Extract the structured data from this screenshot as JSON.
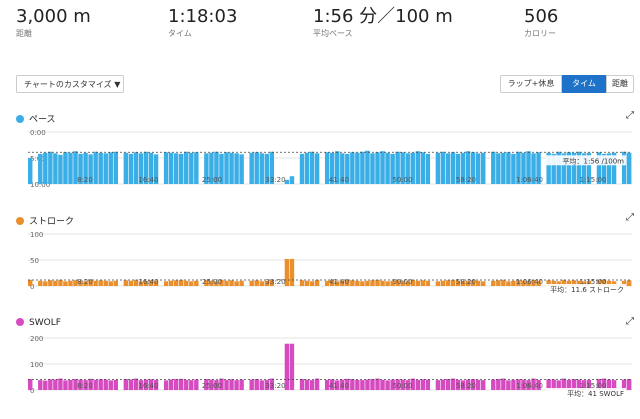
{
  "stats": [
    {
      "value": "3,000 m",
      "label": "距離"
    },
    {
      "value": "1:18:03",
      "label": "タイム"
    },
    {
      "value": "1:56 分／100 m",
      "label": "平均ペース"
    },
    {
      "value": "506",
      "label": "カロリー"
    }
  ],
  "toolbar": {
    "customize_label": "チャートのカスタマイズ ▼",
    "segments": [
      "ラップ+休息",
      "タイム",
      "距離"
    ],
    "active_segment": "タイム"
  },
  "colors": {
    "pace": "#3aaee6",
    "stroke": "#ea8f2b",
    "swolf": "#d74bc0",
    "accent": "#1e73c8"
  },
  "xticks": [
    "8:20",
    "16:40",
    "25:00",
    "33:20",
    "41:40",
    "50:00",
    "58:20",
    "1:06:40",
    "1:15:00"
  ],
  "chart_data": [
    {
      "type": "bar",
      "title": "ペース",
      "y_ticks": [
        "0:00",
        "5:00",
        "10:00"
      ],
      "inverted": true,
      "average_label": "平均：1:56 /100m",
      "average": 0.39,
      "values": [
        0.5,
        0,
        0.42,
        0.4,
        0.38,
        0.41,
        0.44,
        0.39,
        0.4,
        0.37,
        0.42,
        0.4,
        0.43,
        0.38,
        0.4,
        0.41,
        0.39,
        0.38,
        0,
        0.4,
        0.42,
        0.39,
        0.41,
        0.38,
        0.4,
        0.43,
        0,
        0.39,
        0.4,
        0.41,
        0.42,
        0.38,
        0.4,
        0.39,
        0,
        0.41,
        0.4,
        0.38,
        0.42,
        0.39,
        0.4,
        0.41,
        0.43,
        0,
        0.4,
        0.39,
        0.41,
        0.42,
        0.38,
        0,
        0,
        0.92,
        0.85,
        0,
        0.42,
        0.4,
        0.38,
        0.41,
        0,
        0.39,
        0.4,
        0.37,
        0.41,
        0.42,
        0.39,
        0.4,
        0.38,
        0.36,
        0.41,
        0.39,
        0.37,
        0.4,
        0.42,
        0.38,
        0.39,
        0.41,
        0.4,
        0.37,
        0.39,
        0.42,
        0,
        0.4,
        0.38,
        0.41,
        0.39,
        0.42,
        0.4,
        0.37,
        0.39,
        0.41,
        0.4,
        0,
        0.38,
        0.41,
        0.4,
        0.39,
        0.42,
        0.38,
        0.4,
        0.37,
        0.41,
        0.39,
        0,
        0.4,
        0.42,
        0.38,
        0.41,
        0.39,
        0.4,
        0.38,
        0.41,
        0.4,
        0,
        0.39,
        0.42,
        0.41,
        0.4,
        0,
        0.38,
        0.4
      ]
    },
    {
      "type": "bar",
      "title": "ストローク",
      "y_ticks": [
        "100",
        "50",
        "0"
      ],
      "ymax": 100,
      "average_label": "平均：11.6 ストローク",
      "average": 11.6,
      "values": [
        12,
        0,
        10,
        9,
        11,
        10,
        12,
        9,
        10,
        11,
        10,
        9,
        12,
        10,
        11,
        10,
        9,
        10,
        0,
        11,
        10,
        12,
        9,
        10,
        11,
        10,
        0,
        9,
        10,
        11,
        12,
        10,
        9,
        10,
        0,
        11,
        10,
        9,
        12,
        10,
        11,
        9,
        10,
        0,
        10,
        11,
        9,
        10,
        12,
        0,
        0,
        52,
        52,
        0,
        11,
        10,
        9,
        12,
        0,
        10,
        11,
        9,
        10,
        12,
        11,
        10,
        9,
        10,
        11,
        12,
        10,
        9,
        10,
        11,
        10,
        9,
        12,
        10,
        11,
        10,
        0,
        9,
        10,
        11,
        12,
        10,
        9,
        10,
        11,
        10,
        9,
        0,
        10,
        11,
        12,
        9,
        10,
        11,
        10,
        9,
        12,
        10,
        0,
        11,
        10,
        9,
        12,
        10,
        11,
        10,
        9,
        10,
        0,
        11,
        12,
        10,
        9,
        0,
        10,
        11
      ]
    },
    {
      "type": "bar",
      "title": "SWOLF",
      "y_ticks": [
        "200",
        "100",
        "0"
      ],
      "ymax": 200,
      "average_label": "平均：41 SWOLF",
      "average": 41,
      "values": [
        42,
        0,
        38,
        36,
        41,
        40,
        44,
        37,
        39,
        42,
        40,
        38,
        43,
        39,
        41,
        40,
        37,
        39,
        0,
        42,
        40,
        44,
        38,
        40,
        41,
        39,
        0,
        37,
        40,
        42,
        43,
        39,
        38,
        40,
        0,
        42,
        40,
        38,
        44,
        39,
        41,
        38,
        40,
        0,
        40,
        42,
        37,
        39,
        44,
        0,
        0,
        178,
        178,
        0,
        42,
        40,
        38,
        44,
        0,
        39,
        41,
        37,
        40,
        43,
        42,
        39,
        38,
        40,
        42,
        44,
        39,
        37,
        40,
        41,
        40,
        38,
        44,
        39,
        41,
        40,
        0,
        38,
        40,
        42,
        44,
        39,
        37,
        40,
        42,
        39,
        38,
        0,
        40,
        42,
        44,
        37,
        39,
        41,
        40,
        38,
        44,
        39,
        0,
        41,
        40,
        37,
        44,
        39,
        42,
        40,
        38,
        39,
        0,
        42,
        44,
        40,
        38,
        0,
        40,
        42
      ]
    }
  ]
}
